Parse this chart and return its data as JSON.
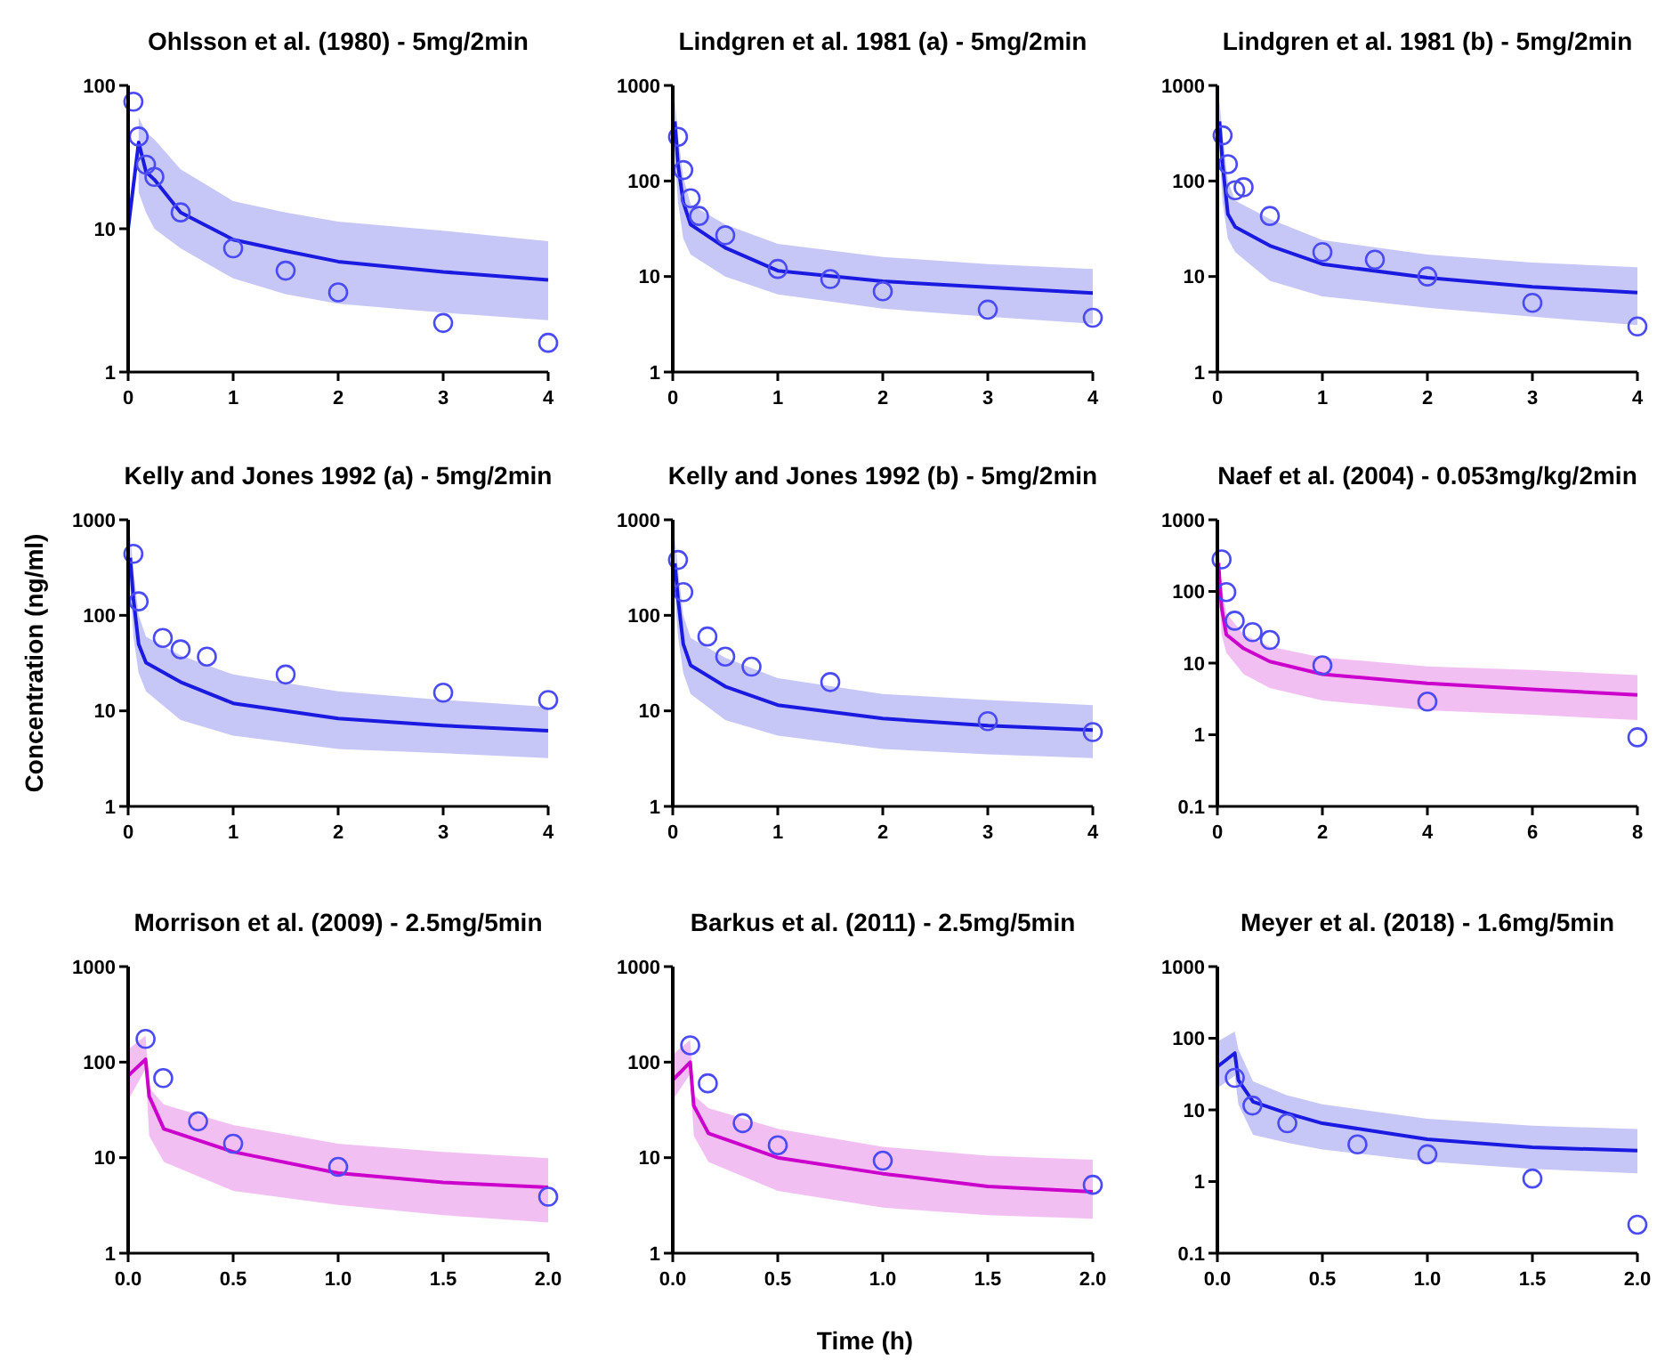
{
  "chart_data": [
    {
      "type": "line",
      "title": "Ohlsson et al. (1980) - 5mg/2min",
      "log": true,
      "xlim": [
        0,
        4
      ],
      "xticks": [
        0,
        1,
        2,
        3,
        4
      ],
      "ylim": [
        1,
        100
      ],
      "yticks": [
        1,
        10,
        100
      ],
      "series": [
        {
          "color": "#1a1ae0",
          "x": [
            0,
            0.1,
            0.17,
            0.25,
            0.5,
            1,
            1.5,
            2,
            3,
            4
          ],
          "values": [
            10,
            40,
            25,
            22,
            13,
            8.4,
            7,
            5.9,
            5,
            4.4
          ],
          "lower": [
            null,
            18,
            13,
            10,
            7.3,
            4.5,
            3.5,
            3,
            2.6,
            2.3
          ],
          "upper": [
            null,
            60,
            47,
            42,
            26,
            15.6,
            13,
            11.2,
            9.7,
            8.2
          ]
        },
        {
          "type": "scatter",
          "marker": "circle",
          "color": "#4b4bf5",
          "x": [
            0.05,
            0.1,
            0.17,
            0.25,
            0.5,
            1,
            1.5,
            2,
            3,
            4
          ],
          "values": [
            77,
            44,
            28,
            23,
            13,
            7.3,
            5.1,
            3.6,
            2.2,
            1.6
          ]
        }
      ]
    },
    {
      "type": "line",
      "title": "Lindgren et al. 1981 (a) - 5mg/2min",
      "log": true,
      "xlim": [
        0,
        4
      ],
      "xticks": [
        0,
        1,
        2,
        3,
        4
      ],
      "ylim": [
        1,
        1000
      ],
      "yticks": [
        1,
        10,
        100,
        1000
      ],
      "series": [
        {
          "color": "#1a1ae0",
          "x": [
            0.02,
            0.05,
            0.1,
            0.17,
            0.5,
            1,
            2,
            3,
            4
          ],
          "values": [
            420,
            150,
            60,
            35,
            20,
            11.5,
            8.9,
            7.7,
            6.7
          ],
          "lower": [
            200,
            60,
            25,
            17,
            10,
            6.5,
            4.6,
            3.8,
            3.2
          ],
          "upper": [
            700,
            300,
            110,
            57,
            35,
            22,
            16,
            13.5,
            12
          ]
        },
        {
          "type": "scatter",
          "marker": "circle",
          "color": "#4b4bf5",
          "x": [
            0.05,
            0.1,
            0.17,
            0.25,
            0.5,
            1,
            1.5,
            2,
            3,
            4
          ],
          "values": [
            290,
            130,
            66,
            43,
            27,
            12,
            9.4,
            7,
            4.5,
            3.7
          ]
        }
      ]
    },
    {
      "type": "line",
      "title": "Lindgren et al. 1981 (b) - 5mg/2min",
      "log": true,
      "xlim": [
        0,
        4
      ],
      "xticks": [
        0,
        1,
        2,
        3,
        4
      ],
      "ylim": [
        1,
        1000
      ],
      "yticks": [
        1,
        10,
        100,
        1000
      ],
      "series": [
        {
          "color": "#1a1ae0",
          "x": [
            0.02,
            0.05,
            0.1,
            0.17,
            0.5,
            1,
            2,
            3,
            4
          ],
          "values": [
            420,
            150,
            45,
            33,
            21,
            13.5,
            9.7,
            7.8,
            6.8
          ],
          "lower": [
            200,
            60,
            25,
            18,
            9,
            6.2,
            4.7,
            3.8,
            3.1
          ],
          "upper": [
            700,
            300,
            100,
            62,
            40,
            24,
            17,
            14,
            12.5
          ]
        },
        {
          "type": "scatter",
          "marker": "circle",
          "color": "#4b4bf5",
          "x": [
            0.05,
            0.1,
            0.17,
            0.25,
            0.5,
            1,
            1.5,
            2,
            3,
            4
          ],
          "values": [
            300,
            150,
            80,
            86,
            43,
            18,
            15,
            10,
            5.3,
            3.0
          ]
        }
      ]
    },
    {
      "type": "line",
      "title": "Kelly and Jones 1992 (a) - 5mg/2min",
      "ylabel": "Concentration (ng/ml)",
      "log": true,
      "xlim": [
        0,
        4
      ],
      "xticks": [
        0,
        1,
        2,
        3,
        4
      ],
      "ylim": [
        1,
        1000
      ],
      "yticks": [
        1,
        10,
        100,
        1000
      ],
      "series": [
        {
          "color": "#1a1ae0",
          "x": [
            0.02,
            0.05,
            0.1,
            0.17,
            0.5,
            1,
            2,
            3,
            4
          ],
          "values": [
            400,
            150,
            50,
            32,
            20,
            12,
            8.3,
            7,
            6.2
          ],
          "lower": [
            200,
            60,
            25,
            16,
            8,
            5.5,
            4,
            3.6,
            3.2
          ],
          "upper": [
            700,
            300,
            100,
            60,
            38,
            24,
            16,
            13,
            11
          ]
        },
        {
          "type": "scatter",
          "marker": "circle",
          "color": "#4b4bf5",
          "x": [
            0.05,
            0.1,
            0.33,
            0.5,
            0.75,
            1.5,
            3,
            4
          ],
          "values": [
            440,
            140,
            58,
            44,
            37,
            24,
            15.5,
            13
          ]
        }
      ]
    },
    {
      "type": "line",
      "title": "Kelly and Jones 1992 (b) - 5mg/2min",
      "log": true,
      "xlim": [
        0,
        4
      ],
      "xticks": [
        0,
        1,
        2,
        3,
        4
      ],
      "ylim": [
        1,
        1000
      ],
      "yticks": [
        1,
        10,
        100,
        1000
      ],
      "series": [
        {
          "color": "#1a1ae0",
          "x": [
            0.02,
            0.05,
            0.1,
            0.17,
            0.5,
            1,
            2,
            3,
            4
          ],
          "values": [
            350,
            150,
            50,
            30,
            18,
            11.5,
            8.3,
            7,
            6.3
          ],
          "lower": [
            180,
            60,
            25,
            15,
            8,
            5.5,
            4,
            3.5,
            3.2
          ],
          "upper": [
            650,
            300,
            100,
            58,
            36,
            22,
            15,
            13,
            11.5
          ]
        },
        {
          "type": "scatter",
          "marker": "circle",
          "color": "#4b4bf5",
          "x": [
            0.05,
            0.1,
            0.33,
            0.5,
            0.75,
            1.5,
            3,
            4
          ],
          "values": [
            380,
            175,
            60,
            37,
            29,
            20,
            7.8,
            6
          ]
        }
      ]
    },
    {
      "type": "line",
      "title": "Naef et al. (2004) - 0.053mg/kg/2min",
      "log": true,
      "xlim": [
        0,
        8
      ],
      "xticks": [
        0,
        2,
        4,
        6,
        8
      ],
      "ylim": [
        0.1,
        1000
      ],
      "yticks": [
        0.1,
        1,
        10,
        100,
        1000
      ],
      "series": [
        {
          "color": "#cc00cc",
          "x": [
            0.02,
            0.08,
            0.17,
            0.5,
            1,
            2,
            4,
            6,
            8
          ],
          "values": [
            250,
            60,
            25,
            16,
            10.5,
            7,
            5.2,
            4.3,
            3.6
          ],
          "lower": [
            120,
            25,
            14,
            7,
            4.5,
            3,
            2.2,
            1.9,
            1.6
          ],
          "upper": [
            450,
            120,
            50,
            25,
            17,
            12,
            9,
            8,
            6.8
          ]
        },
        {
          "type": "scatter",
          "marker": "circle",
          "color": "#4b4bf5",
          "x": [
            0.08,
            0.17,
            0.33,
            0.67,
            1,
            2,
            4,
            8
          ],
          "values": [
            280,
            98,
            39,
            27,
            21,
            9.3,
            2.9,
            0.92
          ]
        }
      ]
    },
    {
      "type": "line",
      "title": "Morrison et al. (2009) - 2.5mg/5min",
      "log": true,
      "xlim": [
        0,
        2
      ],
      "xticks": [
        {
          "value": 0,
          "label": "0.0"
        },
        0.5,
        {
          "value": 1,
          "label": "1.0"
        },
        1.5,
        {
          "value": 2,
          "label": "2.0"
        }
      ],
      "ylim": [
        1,
        1000
      ],
      "yticks": [
        1,
        10,
        100,
        1000
      ],
      "series": [
        {
          "color": "#cc00cc",
          "x": [
            0,
            0.083,
            0.1,
            0.17,
            0.5,
            1,
            1.5,
            2
          ],
          "values": [
            72,
            107,
            44,
            20,
            11.5,
            6.9,
            5.5,
            4.9
          ],
          "lower": [
            40,
            85,
            17,
            9,
            4.5,
            3.2,
            2.5,
            2.1
          ],
          "upper": [
            135,
            190,
            54,
            36,
            22,
            14,
            11.5,
            9.9
          ]
        },
        {
          "type": "scatter",
          "marker": "circle",
          "color": "#4b4bf5",
          "x": [
            0.083,
            0.167,
            0.333,
            0.5,
            1,
            2
          ],
          "values": [
            175,
            68,
            24,
            14,
            8,
            3.9
          ]
        }
      ]
    },
    {
      "type": "line",
      "title": "Barkus et al. (2011) - 2.5mg/5min",
      "xlabel": "Time (h)",
      "log": true,
      "xlim": [
        0,
        2
      ],
      "xticks": [
        {
          "value": 0,
          "label": "0.0"
        },
        0.5,
        {
          "value": 1,
          "label": "1.0"
        },
        1.5,
        {
          "value": 2,
          "label": "2.0"
        }
      ],
      "ylim": [
        1,
        1000
      ],
      "yticks": [
        1,
        10,
        100,
        1000
      ],
      "series": [
        {
          "color": "#cc00cc",
          "x": [
            0,
            0.083,
            0.1,
            0.17,
            0.5,
            1,
            1.5,
            2
          ],
          "values": [
            65,
            100,
            35,
            18,
            10,
            6.8,
            5,
            4.4
          ],
          "lower": [
            40,
            75,
            17,
            9,
            4.5,
            3,
            2.5,
            2.3
          ],
          "upper": [
            120,
            170,
            45,
            33,
            20,
            13,
            10.5,
            9.5
          ]
        },
        {
          "type": "scatter",
          "marker": "circle",
          "color": "#4b4bf5",
          "x": [
            0.083,
            0.167,
            0.333,
            0.5,
            1,
            2
          ],
          "values": [
            150,
            60,
            23,
            13.5,
            9.3,
            5.2
          ]
        }
      ]
    },
    {
      "type": "line",
      "title": "Meyer et al. (2018) - 1.6mg/5min",
      "log": true,
      "xlim": [
        0,
        2
      ],
      "xticks": [
        {
          "value": 0,
          "label": "0.0"
        },
        0.5,
        {
          "value": 1,
          "label": "1.0"
        },
        1.5,
        {
          "value": 2,
          "label": "2.0"
        }
      ],
      "ylim": [
        0.1,
        1000
      ],
      "yticks": [
        0.1,
        1,
        10,
        100,
        1000
      ],
      "series": [
        {
          "color": "#1a1ae0",
          "x": [
            0,
            0.083,
            0.1,
            0.17,
            0.33,
            0.5,
            1,
            1.5,
            2
          ],
          "values": [
            40,
            62,
            26,
            13,
            9,
            6.5,
            3.9,
            3,
            2.7
          ],
          "lower": [
            20,
            30,
            12,
            4.5,
            3.5,
            2.8,
            1.9,
            1.5,
            1.3
          ],
          "upper": [
            90,
            124,
            70,
            25,
            16,
            12,
            7.5,
            6,
            5.4
          ]
        },
        {
          "type": "scatter",
          "marker": "circle",
          "color": "#4b4bf5",
          "x": [
            0.083,
            0.167,
            0.333,
            0.667,
            1,
            1.5,
            2
          ],
          "values": [
            28,
            11.5,
            6.5,
            3.3,
            2.4,
            1.1,
            0.25
          ]
        }
      ]
    }
  ]
}
